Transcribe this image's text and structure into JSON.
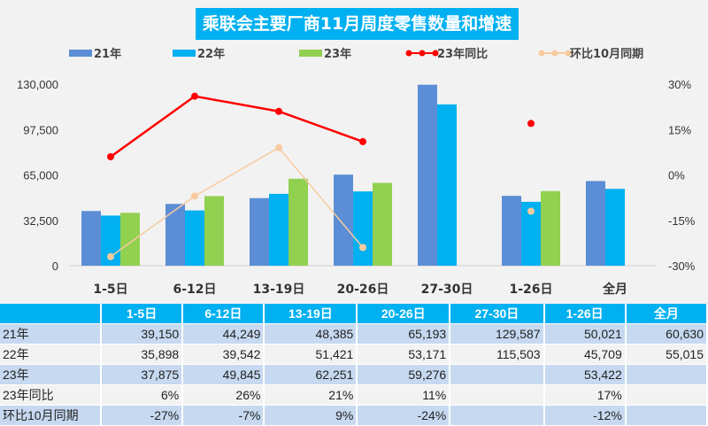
{
  "chart_data": {
    "type": "bar",
    "title": "乘联会主要厂商11月周度零售数量和增速",
    "categories": [
      "1-5日",
      "6-12日",
      "13-19日",
      "20-26日",
      "27-30日",
      "1-26日",
      "全月"
    ],
    "series": [
      {
        "name": "21年",
        "type": "bar",
        "color": "#5b8ed6",
        "values": [
          39150,
          44249,
          48385,
          65193,
          129587,
          50021,
          60630
        ]
      },
      {
        "name": "22年",
        "type": "bar",
        "color": "#00b0f0",
        "values": [
          35898,
          39542,
          51421,
          53171,
          115503,
          45709,
          55015
        ]
      },
      {
        "name": "23年",
        "type": "bar",
        "color": "#92d050",
        "values": [
          37875,
          49845,
          62251,
          59276,
          null,
          53422,
          null
        ]
      },
      {
        "name": "23年同比",
        "type": "line",
        "axis": "right",
        "color": "#ff0000",
        "values": [
          6,
          26,
          21,
          11,
          null,
          17,
          null
        ]
      },
      {
        "name": "环比10月同期",
        "type": "line",
        "axis": "right",
        "color": "#f8cba0",
        "values": [
          -27,
          -7,
          9,
          -24,
          null,
          -12,
          null
        ]
      }
    ],
    "ylim": [
      0,
      130000
    ],
    "yticks": [
      "0",
      "32,500",
      "65,000",
      "97,500",
      "130,000"
    ],
    "y2lim": [
      -30,
      30
    ],
    "y2ticks": [
      "-30%",
      "-15%",
      "0%",
      "15%",
      "30%"
    ],
    "legend": "top"
  },
  "table": {
    "header": [
      "",
      "1-5日",
      "6-12日",
      "13-19日",
      "20-26日",
      "27-30日",
      "1-26日",
      "全月"
    ],
    "rows": [
      [
        "21年",
        "39,150",
        "44,249",
        "48,385",
        "65,193",
        "129,587",
        "50,021",
        "60,630"
      ],
      [
        "22年",
        "35,898",
        "39,542",
        "51,421",
        "53,171",
        "115,503",
        "45,709",
        "55,015"
      ],
      [
        "23年",
        "37,875",
        "49,845",
        "62,251",
        "59,276",
        "",
        "53,422",
        ""
      ],
      [
        "23年同比",
        "6%",
        "26%",
        "21%",
        "11%",
        "",
        "17%",
        ""
      ],
      [
        "环比10月同期",
        "-27%",
        "-7%",
        "9%",
        "-24%",
        "",
        "-12%",
        ""
      ]
    ]
  }
}
